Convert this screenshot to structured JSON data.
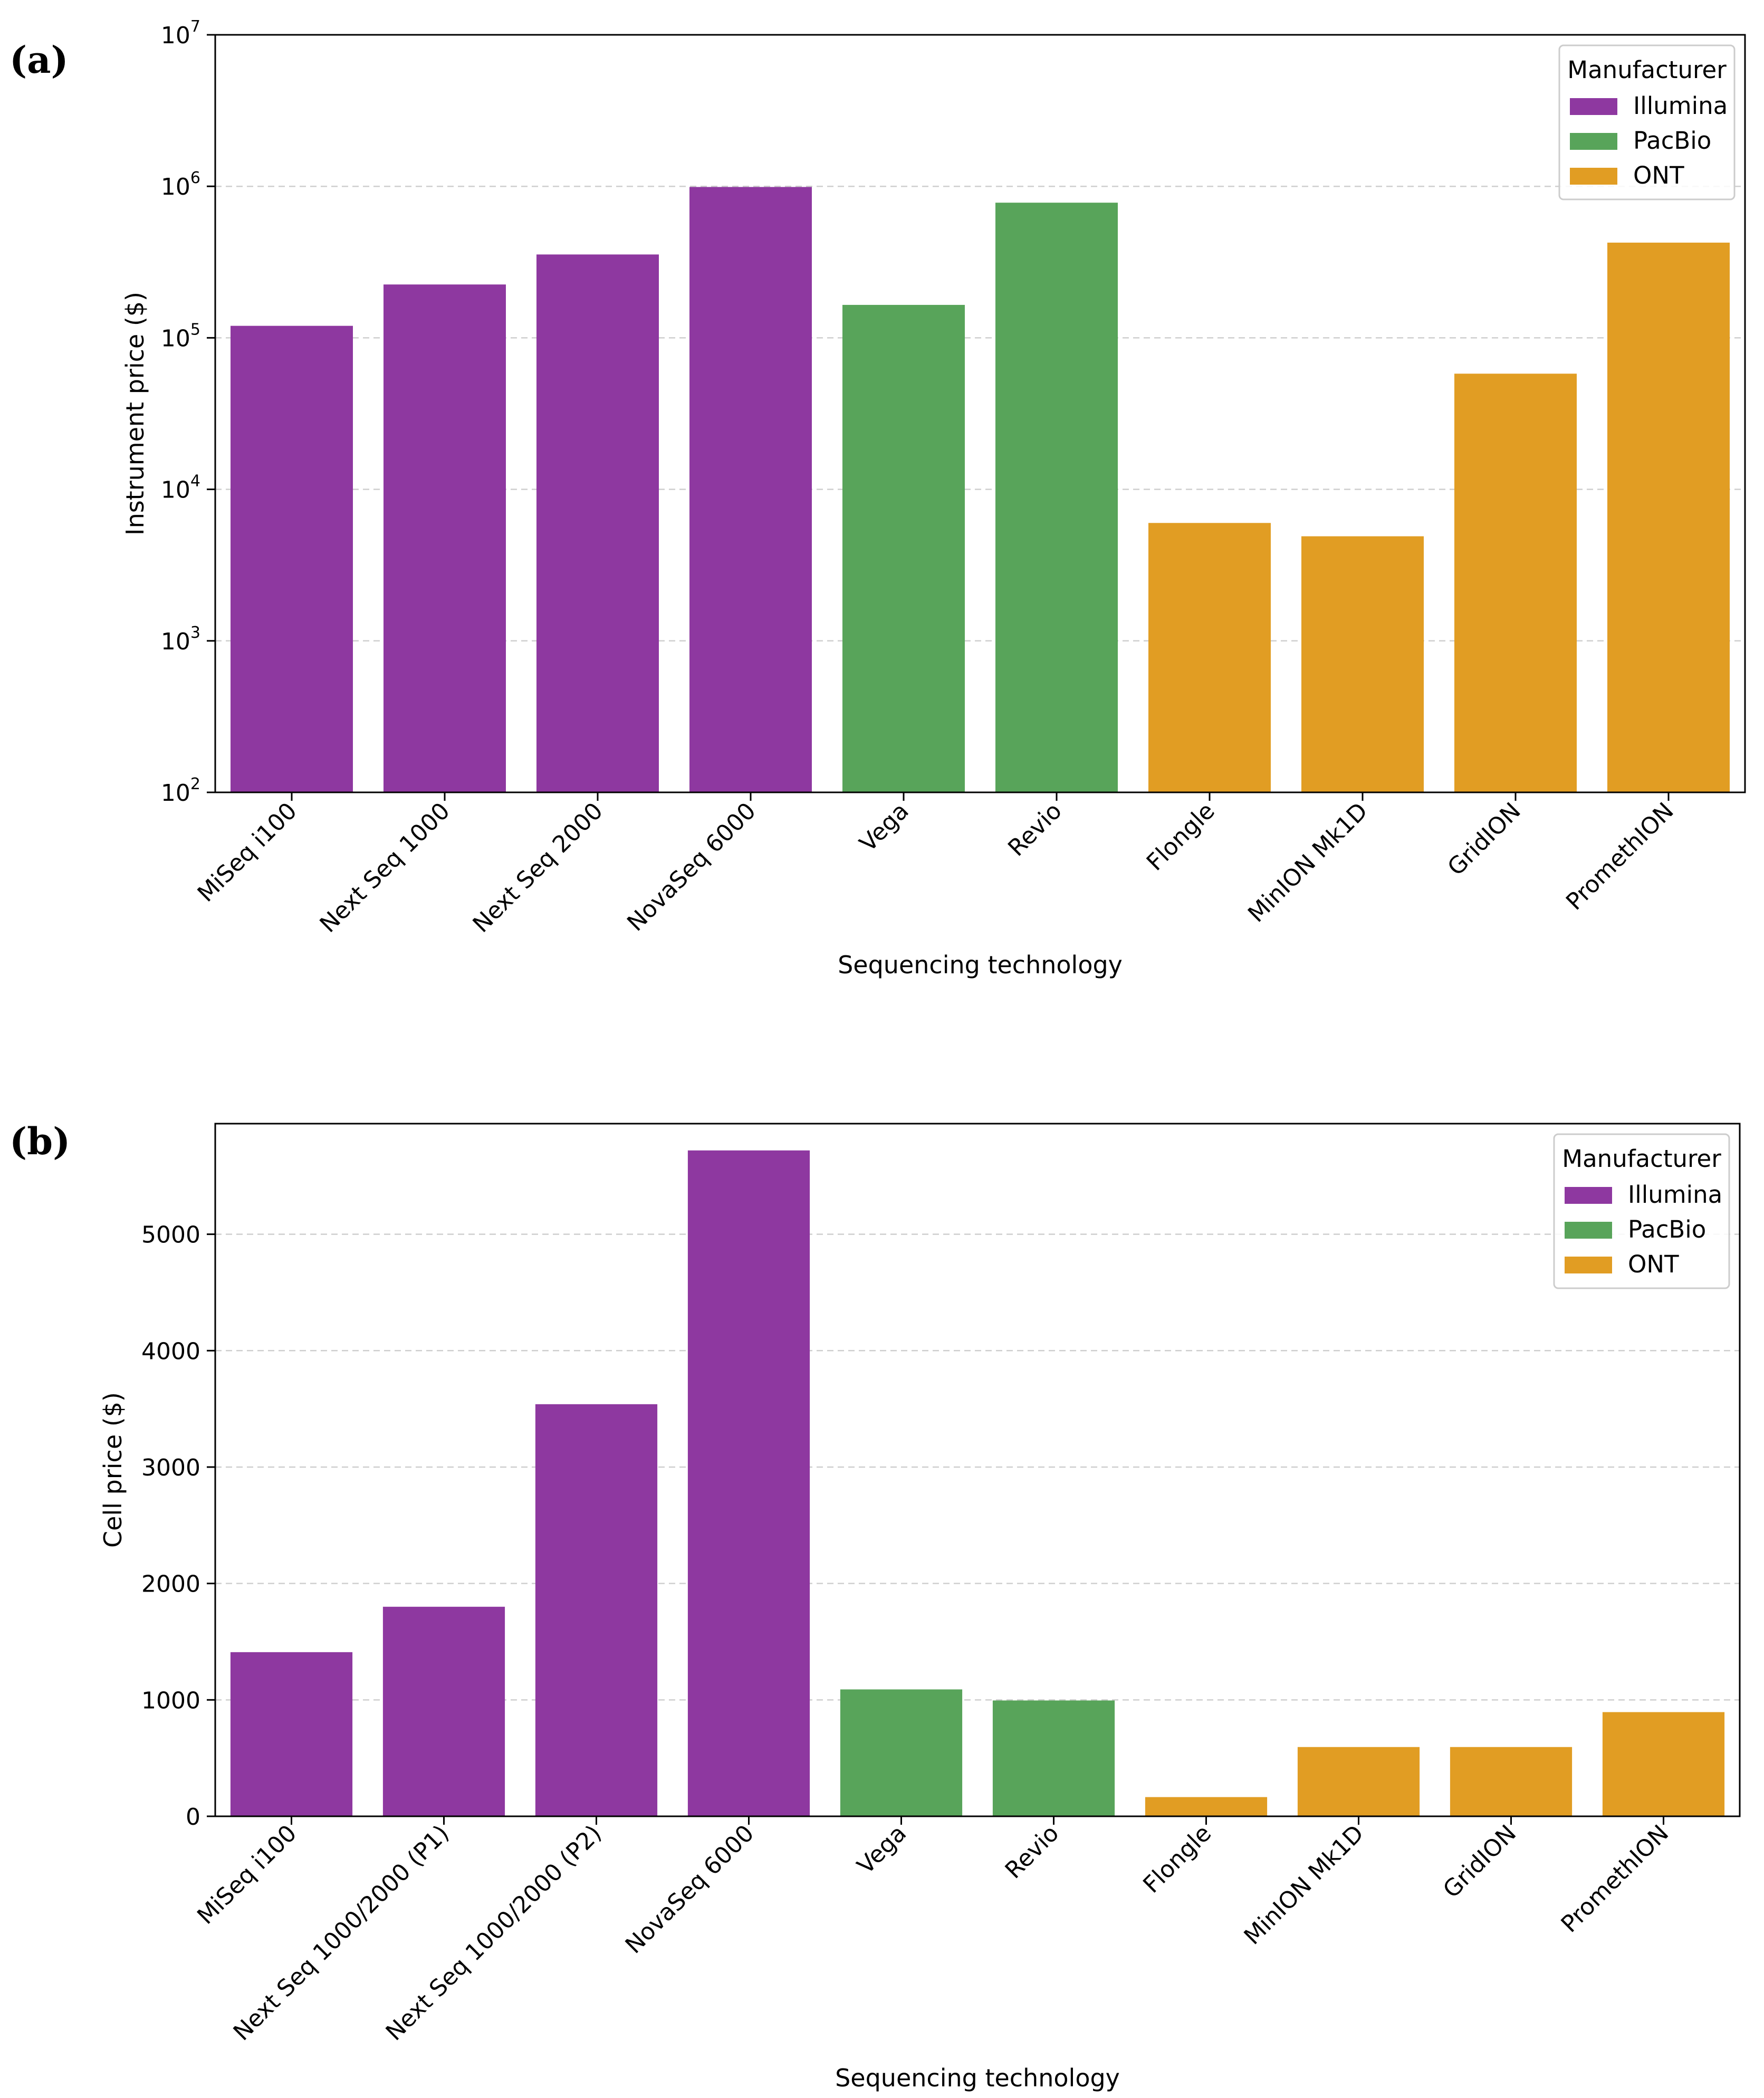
{
  "colors": {
    "Illumina": "#8E38A0",
    "PacBio": "#58A45A",
    "ONT": "#E19D23",
    "grid": "#cfcfcf",
    "axis": "#000000"
  },
  "chart_data": [
    {
      "panel_label": "(a)",
      "type": "bar",
      "yscale": "log",
      "ylim": [
        100,
        10000000
      ],
      "grid": "y-dashed",
      "legend_placement": "top-right",
      "xlabel": "Sequencing technology",
      "ylabel": "Instrument price ($)",
      "ytick_values": [
        100,
        1000,
        10000,
        100000,
        1000000,
        10000000
      ],
      "ytick_labels": [
        {
          "base": "10",
          "exp": "2"
        },
        {
          "base": "10",
          "exp": "3"
        },
        {
          "base": "10",
          "exp": "4"
        },
        {
          "base": "10",
          "exp": "5"
        },
        {
          "base": "10",
          "exp": "6"
        },
        {
          "base": "10",
          "exp": "7"
        }
      ],
      "categories": [
        "MiSeq i100",
        "Next Seq 1000",
        "Next Seq 2000",
        "NovaSeq 6000",
        "Vega",
        "Revio",
        "Flongle",
        "MinION Mk1D",
        "GridION",
        "PromethION"
      ],
      "values": [
        120000,
        225000,
        355000,
        990000,
        165000,
        780000,
        6000,
        4900,
        58000,
        425000
      ],
      "manufacturer": [
        "Illumina",
        "Illumina",
        "Illumina",
        "Illumina",
        "PacBio",
        "PacBio",
        "ONT",
        "ONT",
        "ONT",
        "ONT"
      ],
      "legend_title": "Manufacturer",
      "legend": [
        "Illumina",
        "PacBio",
        "ONT"
      ]
    },
    {
      "panel_label": "(b)",
      "type": "bar",
      "yscale": "linear",
      "ylim": [
        0,
        5950
      ],
      "grid": "y-dashed",
      "legend_placement": "top-right",
      "xlabel": "Sequencing technology",
      "ylabel": "Cell price ($)",
      "ytick_values": [
        0,
        1000,
        2000,
        3000,
        4000,
        5000
      ],
      "ytick_labels": [
        "0",
        "1000",
        "2000",
        "3000",
        "4000",
        "5000"
      ],
      "categories": [
        "MiSeq i100",
        "Next Seq 1000/2000 (P1)",
        "Next Seq 1000/2000 (P2)",
        "NovaSeq 6000",
        "Vega",
        "Revio",
        "Flongle",
        "MinION Mk1D",
        "GridION",
        "PromethION"
      ],
      "values": [
        1410,
        1800,
        3540,
        5720,
        1090,
        995,
        165,
        595,
        595,
        895
      ],
      "manufacturer": [
        "Illumina",
        "Illumina",
        "Illumina",
        "Illumina",
        "PacBio",
        "PacBio",
        "ONT",
        "ONT",
        "ONT",
        "ONT"
      ],
      "legend_title": "Manufacturer",
      "legend": [
        "Illumina",
        "PacBio",
        "ONT"
      ]
    }
  ]
}
